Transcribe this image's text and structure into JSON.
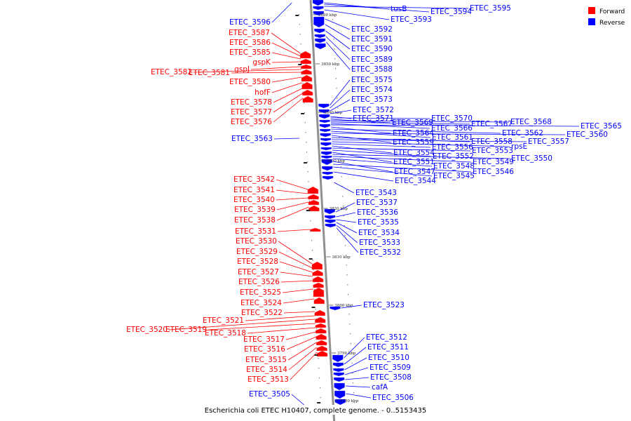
{
  "title": "Escherichia coli ETEC H10407, complete genome. - 0..5153435",
  "colors": {
    "forward": "#ff0000",
    "reverse": "#0000ff",
    "axis": "#909090"
  },
  "legend": [
    {
      "label": "Forward",
      "color": "#ff0000"
    },
    {
      "label": "Reverse",
      "color": "#0000ff"
    }
  ],
  "ticks": [
    "3860 kbp",
    "3850 kbp",
    "3840 kbp",
    "3830 kbp",
    "3820 kbp",
    "3810 kbp",
    "3800 kbp",
    "3790 kbp",
    "3780 kbp"
  ],
  "reverse_genes": [
    "tusB",
    "ETEC_3594",
    "ETEC_3595",
    "ETEC_3593",
    "ETEC_3592",
    "ETEC_3591",
    "ETEC_3590",
    "ETEC_3589",
    "ETEC_3588",
    "ETEC_3575",
    "ETEC_3574",
    "ETEC_3573",
    "ETEC_3572",
    "ETEC_3571",
    "ETEC_3570",
    "ETEC_3569",
    "ETEC_3568",
    "ETEC_3567",
    "ETEC_3566",
    "ETEC_3565",
    "ETEC_3564",
    "ETEC_3562",
    "ETEC_3561",
    "ETEC_3560",
    "ETEC_3559",
    "ETEC_3558",
    "ETEC_3557",
    "rpsE",
    "ETEC_3556",
    "ETEC_3554",
    "ETEC_3553",
    "ETEC_3552",
    "ETEC_3551",
    "ETEC_3550",
    "ETEC_3549",
    "ETEC_3548",
    "ETEC_3547",
    "ETEC_3546",
    "ETEC_3545",
    "ETEC_3544",
    "ETEC_3543",
    "ETEC_3537",
    "ETEC_3536",
    "ETEC_3535",
    "ETEC_3534",
    "ETEC_3533",
    "ETEC_3532",
    "ETEC_3523",
    "ETEC_3512",
    "ETEC_3511",
    "ETEC_3510",
    "ETEC_3509",
    "ETEC_3508",
    "cafA",
    "ETEC_3506",
    "ETEC_3596",
    "ETEC_3563",
    "ETEC_3505"
  ],
  "forward_genes": [
    "ETEC_3587",
    "ETEC_3586",
    "ETEC_3585",
    "gspK",
    "gspJ",
    "ETEC_3582",
    "ETEC_3581",
    "ETEC_3580",
    "hofF",
    "ETEC_3578",
    "ETEC_3577",
    "ETEC_3576",
    "ETEC_3542",
    "ETEC_3541",
    "ETEC_3540",
    "ETEC_3539",
    "ETEC_3538",
    "ETEC_3531",
    "ETEC_3530",
    "ETEC_3529",
    "ETEC_3528",
    "ETEC_3527",
    "ETEC_3526",
    "ETEC_3525",
    "ETEC_3524",
    "ETEC_3522",
    "ETEC_3521",
    "ETEC_3520",
    "ETEC_3519",
    "ETEC_3518",
    "ETEC_3517",
    "ETEC_3516",
    "ETEC_3515",
    "ETEC_3514",
    "ETEC_3513"
  ]
}
